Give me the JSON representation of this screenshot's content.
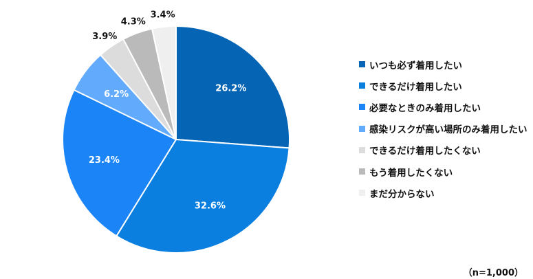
{
  "chart_data": {
    "type": "pie",
    "categories": [
      "いつも必ず着用したい",
      "できるだけ着用したい",
      "必要なときのみ着用したい",
      "感染リスクが高い場所のみ着用したい",
      "できるだけ着用したくない",
      "もう着用したくない",
      "まだ分からない"
    ],
    "values": [
      26.2,
      32.6,
      23.4,
      6.2,
      3.9,
      4.3,
      3.4
    ],
    "value_labels": [
      "26.2%",
      "32.6%",
      "23.4%",
      "6.2%",
      "3.9%",
      "4.3%",
      "3.4%"
    ],
    "colors": [
      "#0565b4",
      "#0b7fe0",
      "#1b84f7",
      "#62aafc",
      "#dcdcdc",
      "#bababa",
      "#efefef"
    ],
    "label_colors": [
      "#ffffff",
      "#ffffff",
      "#ffffff",
      "#ffffff",
      "#111111",
      "#111111",
      "#111111"
    ],
    "label_placement": [
      "inside",
      "inside",
      "inside",
      "inside",
      "outside",
      "outside",
      "outside"
    ],
    "start": "12 o'clock",
    "direction": "clockwise",
    "legend_position": "right"
  },
  "footnote": "（n=1,000）"
}
